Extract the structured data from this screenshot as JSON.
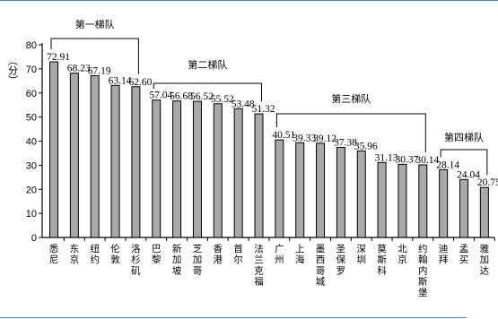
{
  "chart_data": {
    "type": "bar",
    "ylabel": "（分）",
    "ylim": [
      0,
      80
    ],
    "yticks": [
      0,
      10,
      20,
      30,
      40,
      50,
      60,
      70,
      80
    ],
    "categories": [
      "悉尼",
      "东京",
      "纽约",
      "伦敦",
      "洛杉矶",
      "巴黎",
      "新加坡",
      "芝加哥",
      "香港",
      "首尔",
      "法兰克福",
      "广州",
      "上海",
      "墨西哥城",
      "圣保罗",
      "深圳",
      "莫斯科",
      "北京",
      "约翰内斯堡",
      "迪拜",
      "孟买",
      "雅加达"
    ],
    "values": [
      72.91,
      68.23,
      67.19,
      63.14,
      62.6,
      57.04,
      56.68,
      56.52,
      55.52,
      53.48,
      51.32,
      40.51,
      39.33,
      39.12,
      37.38,
      35.96,
      31.13,
      30.37,
      30.14,
      28.14,
      24.04,
      20.75
    ],
    "value_labels": [
      "72.91",
      "68.23",
      "67.19",
      "63.14",
      "62.60",
      "57.04",
      "56.68",
      "56.52",
      "55.52",
      "53.48",
      "51.32",
      "40.51",
      "39.33",
      "39.12",
      "37.38",
      "35.96",
      "31.13",
      "30.37",
      "30.14",
      "28.14",
      "24.04",
      "20.75"
    ],
    "tiers": [
      {
        "label": "第一梯队",
        "start": 0,
        "end": 4
      },
      {
        "label": "第二梯队",
        "start": 5,
        "end": 10
      },
      {
        "label": "第三梯队",
        "start": 11,
        "end": 18
      },
      {
        "label": "第四梯队",
        "start": 19,
        "end": 21
      }
    ],
    "grid": false,
    "legend": "none"
  }
}
